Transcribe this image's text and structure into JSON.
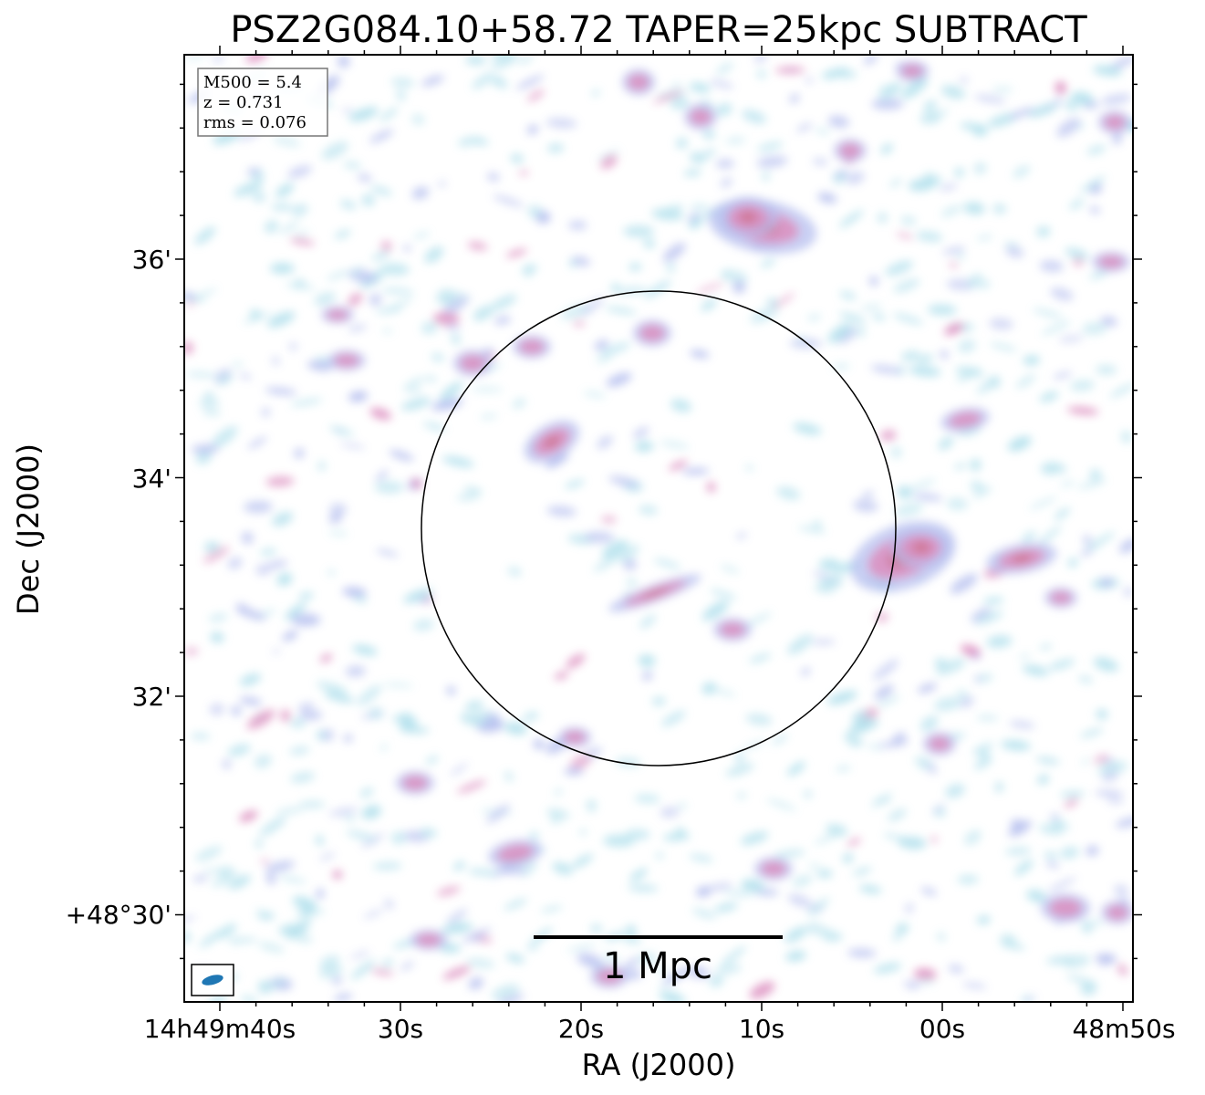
{
  "title": "PSZ2G084.10+58.72 TAPER=25kpc SUBTRACT",
  "info": {
    "m500": "M500 = 5.4",
    "z": "z = 0.731",
    "rms": "rms = 0.076"
  },
  "axes": {
    "xlabel": "RA (J2000)",
    "ylabel": "Dec (J2000)",
    "xticks": [
      "14h49m40s",
      "30s",
      "20s",
      "10s",
      "00s",
      "48m50s"
    ],
    "yticks": [
      "36'",
      "34'",
      "32'",
      "+48°30'"
    ]
  },
  "scalebar": {
    "label": "1 Mpc"
  },
  "colors": {
    "low": "#a8dcea",
    "mid": "#a9b4ec",
    "high": "#d67ab4",
    "peak": "#c45a7a"
  }
}
